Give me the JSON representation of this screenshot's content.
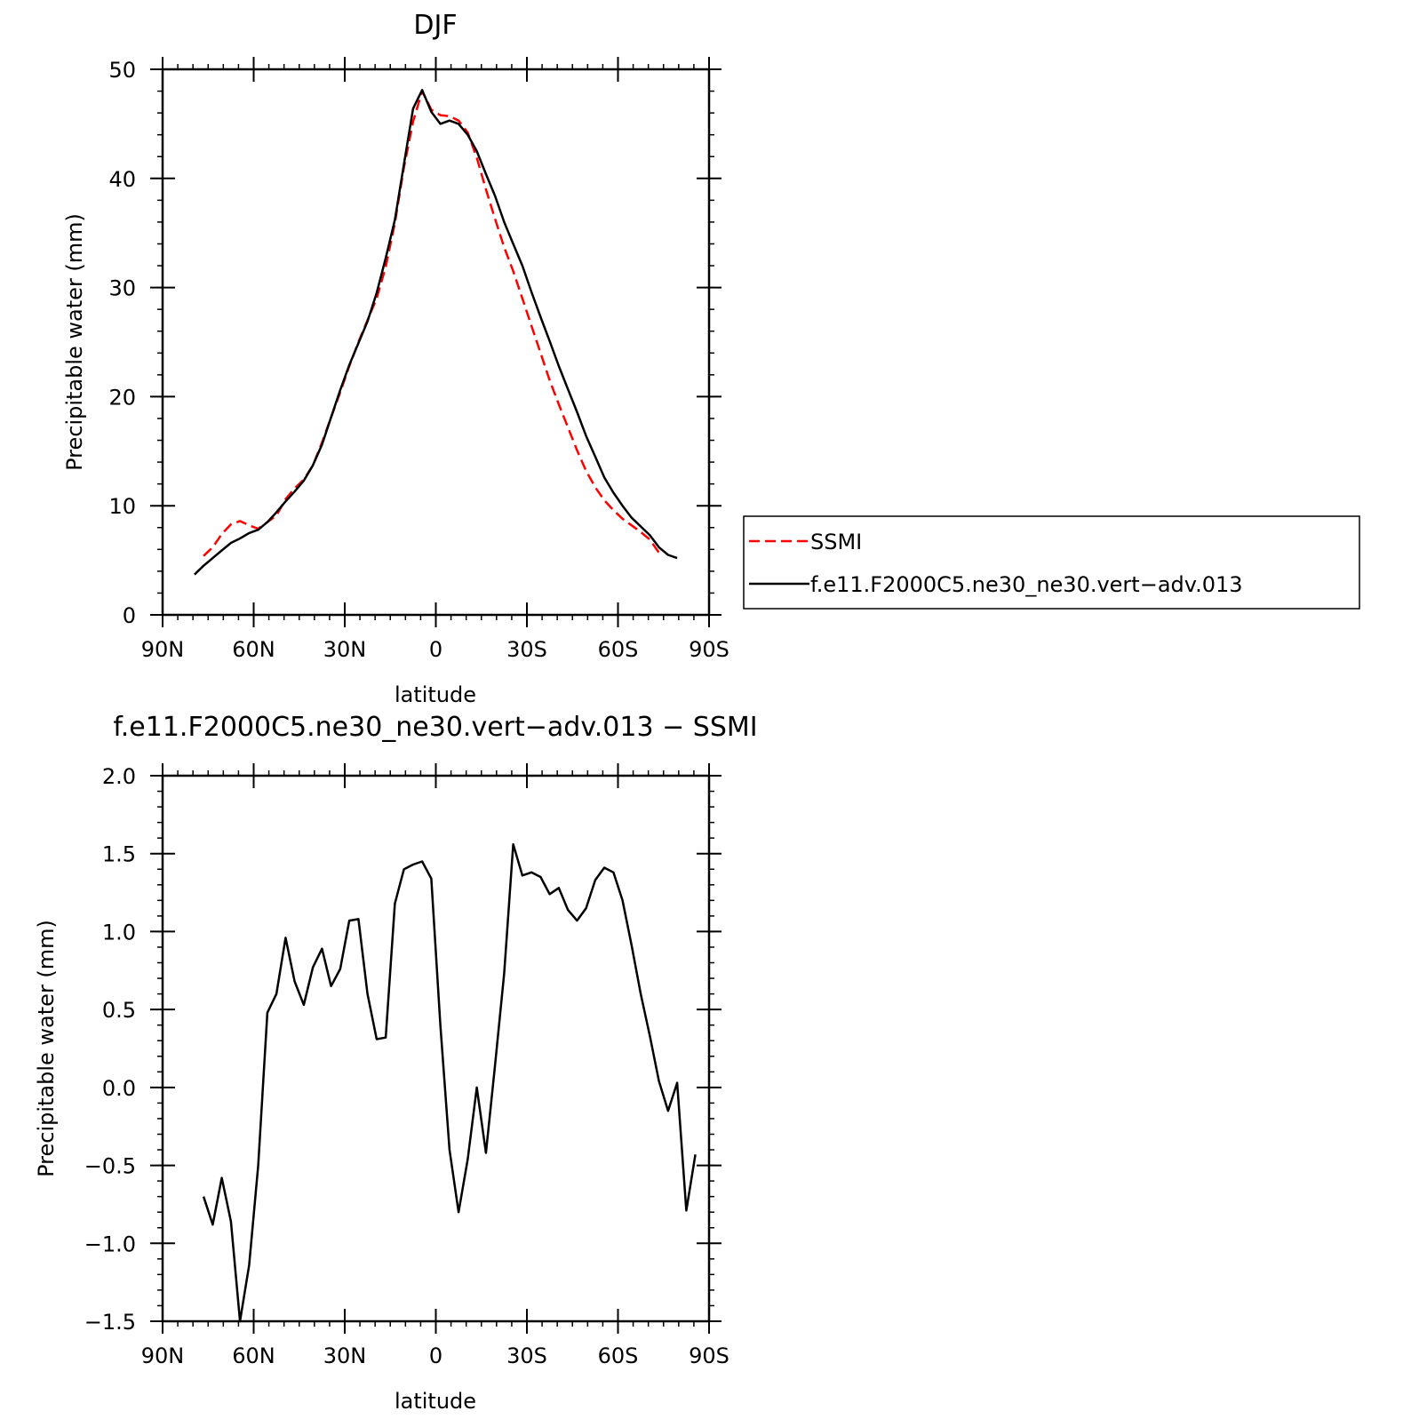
{
  "chart_data": [
    {
      "type": "line",
      "title": "DJF",
      "xlabel": "latitude",
      "ylabel": "Precipitable water (mm)",
      "xlim": [
        90,
        -90
      ],
      "ylim": [
        0,
        50
      ],
      "x_tick_values": [
        90,
        60,
        30,
        0,
        -30,
        -60,
        -90
      ],
      "x_tick_labels": [
        "90N",
        "60N",
        "30N",
        "0",
        "30S",
        "60S",
        "90S"
      ],
      "y_tick_values": [
        0,
        10,
        20,
        30,
        40,
        50
      ],
      "y_tick_labels": [
        "0",
        "10",
        "20",
        "30",
        "40",
        "50"
      ],
      "grid": false,
      "legend": {
        "placement": "right",
        "position": "outside-right"
      },
      "series": [
        {
          "name": "SSMI",
          "color": "#ff0000",
          "dash": "dashed",
          "points": [
            [
              76.5,
              5.4
            ],
            [
              73.5,
              6.2
            ],
            [
              70.5,
              7.4
            ],
            [
              67.5,
              8.3
            ],
            [
              64.5,
              8.6
            ],
            [
              61.5,
              8.2
            ],
            [
              58.5,
              7.9
            ],
            [
              55.5,
              8.5
            ],
            [
              52.5,
              9.1
            ],
            [
              49.5,
              10.6
            ],
            [
              46.5,
              11.6
            ],
            [
              43.5,
              12.4
            ],
            [
              40.5,
              13.7
            ],
            [
              37.5,
              15.8
            ],
            [
              34.5,
              18.1
            ],
            [
              31.5,
              20.4
            ],
            [
              28.5,
              22.8
            ],
            [
              25.5,
              25.0
            ],
            [
              22.5,
              27.0
            ],
            [
              19.5,
              29.0
            ],
            [
              16.5,
              31.9
            ],
            [
              13.5,
              35.9
            ],
            [
              10.5,
              41.0
            ],
            [
              7.5,
              45.2
            ],
            [
              4.5,
              48.0
            ],
            [
              1.5,
              46.3
            ],
            [
              -1.5,
              45.8
            ],
            [
              -4.5,
              45.7
            ],
            [
              -7.5,
              45.3
            ],
            [
              -10.5,
              44.2
            ],
            [
              -13.5,
              41.9
            ],
            [
              -16.5,
              39.0
            ],
            [
              -19.5,
              36.3
            ],
            [
              -22.5,
              33.7
            ],
            [
              -25.5,
              31.5
            ],
            [
              -28.5,
              29.0
            ],
            [
              -31.5,
              26.5
            ],
            [
              -34.5,
              24.0
            ],
            [
              -37.5,
              21.5
            ],
            [
              -40.5,
              19.3
            ],
            [
              -43.5,
              17.2
            ],
            [
              -46.5,
              15.1
            ],
            [
              -49.5,
              13.2
            ],
            [
              -52.5,
              11.7
            ],
            [
              -55.5,
              10.5
            ],
            [
              -58.5,
              9.6
            ],
            [
              -61.5,
              8.8
            ],
            [
              -64.5,
              8.2
            ],
            [
              -67.5,
              7.6
            ],
            [
              -70.5,
              6.9
            ],
            [
              -73.5,
              5.7
            ]
          ]
        },
        {
          "name": "f.e11.F2000C5.ne30_ne30.vert−adv.013",
          "color": "#000000",
          "dash": "solid",
          "points": [
            [
              79.5,
              3.7
            ],
            [
              76.5,
              4.5
            ],
            [
              73.5,
              5.2
            ],
            [
              70.5,
              5.9
            ],
            [
              67.5,
              6.6
            ],
            [
              64.5,
              7.0
            ],
            [
              61.5,
              7.5
            ],
            [
              58.5,
              7.8
            ],
            [
              55.5,
              8.5
            ],
            [
              52.5,
              9.4
            ],
            [
              49.5,
              10.4
            ],
            [
              46.5,
              11.3
            ],
            [
              43.5,
              12.3
            ],
            [
              40.5,
              13.7
            ],
            [
              37.5,
              15.6
            ],
            [
              34.5,
              18.1
            ],
            [
              31.5,
              20.6
            ],
            [
              28.5,
              22.9
            ],
            [
              25.5,
              24.9
            ],
            [
              22.5,
              26.9
            ],
            [
              19.5,
              29.5
            ],
            [
              16.5,
              32.7
            ],
            [
              13.5,
              36.2
            ],
            [
              10.5,
              41.3
            ],
            [
              7.5,
              46.4
            ],
            [
              4.5,
              48.1
            ],
            [
              1.5,
              46.1
            ],
            [
              -1.5,
              45.0
            ],
            [
              -4.5,
              45.3
            ],
            [
              -7.5,
              45.0
            ],
            [
              -10.5,
              44.0
            ],
            [
              -13.5,
              42.5
            ],
            [
              -16.5,
              40.4
            ],
            [
              -19.5,
              38.4
            ],
            [
              -22.5,
              36.0
            ],
            [
              -25.5,
              34.0
            ],
            [
              -28.5,
              32.0
            ],
            [
              -31.5,
              29.6
            ],
            [
              -34.5,
              27.3
            ],
            [
              -37.5,
              25.1
            ],
            [
              -40.5,
              22.8
            ],
            [
              -43.5,
              20.7
            ],
            [
              -46.5,
              18.6
            ],
            [
              -49.5,
              16.4
            ],
            [
              -52.5,
              14.5
            ],
            [
              -55.5,
              12.6
            ],
            [
              -58.5,
              11.2
            ],
            [
              -61.5,
              10.0
            ],
            [
              -64.5,
              8.9
            ],
            [
              -67.5,
              8.1
            ],
            [
              -70.5,
              7.3
            ],
            [
              -73.5,
              6.2
            ],
            [
              -76.5,
              5.5
            ],
            [
              -79.5,
              5.2
            ]
          ]
        }
      ]
    },
    {
      "type": "line",
      "title": "f.e11.F2000C5.ne30_ne30.vert−adv.013 − SSMI",
      "xlabel": "latitude",
      "ylabel": "Precipitable water (mm)",
      "xlim": [
        90,
        -90
      ],
      "ylim": [
        -1.5,
        2.0
      ],
      "x_tick_values": [
        90,
        60,
        30,
        0,
        -30,
        -60,
        -90
      ],
      "x_tick_labels": [
        "90N",
        "60N",
        "30N",
        "0",
        "30S",
        "60S",
        "90S"
      ],
      "y_tick_values": [
        -1.5,
        -1.0,
        -0.5,
        0.0,
        0.5,
        1.0,
        1.5,
        2.0
      ],
      "y_tick_labels": [
        "−1.5",
        "−1.0",
        "−0.5",
        "0.0",
        "0.5",
        "1.0",
        "1.5",
        "2.0"
      ],
      "grid": false,
      "series": [
        {
          "color": "#000000",
          "dash": "solid",
          "points": [
            [
              76.5,
              -0.7
            ],
            [
              73.5,
              -0.88
            ],
            [
              70.5,
              -0.58
            ],
            [
              67.5,
              -0.86
            ],
            [
              64.5,
              -1.5
            ],
            [
              61.5,
              -1.14
            ],
            [
              58.5,
              -0.5
            ],
            [
              55.5,
              0.48
            ],
            [
              52.5,
              0.6
            ],
            [
              49.5,
              0.96
            ],
            [
              46.5,
              0.68
            ],
            [
              43.5,
              0.53
            ],
            [
              40.5,
              0.77
            ],
            [
              37.5,
              0.89
            ],
            [
              34.5,
              0.65
            ],
            [
              31.5,
              0.76
            ],
            [
              28.5,
              1.07
            ],
            [
              25.5,
              1.08
            ],
            [
              22.5,
              0.6
            ],
            [
              19.5,
              0.31
            ],
            [
              16.5,
              0.32
            ],
            [
              13.5,
              1.18
            ],
            [
              10.5,
              1.4
            ],
            [
              7.5,
              1.43
            ],
            [
              4.5,
              1.45
            ],
            [
              1.5,
              1.34
            ],
            [
              -1.5,
              0.4
            ],
            [
              -4.5,
              -0.4
            ],
            [
              -7.5,
              -0.8
            ],
            [
              -10.5,
              -0.46
            ],
            [
              -13.5,
              0.0
            ],
            [
              -16.5,
              -0.42
            ],
            [
              -19.5,
              0.14
            ],
            [
              -22.5,
              0.73
            ],
            [
              -25.5,
              1.56
            ],
            [
              -28.5,
              1.36
            ],
            [
              -31.5,
              1.38
            ],
            [
              -34.5,
              1.35
            ],
            [
              -37.5,
              1.24
            ],
            [
              -40.5,
              1.28
            ],
            [
              -43.5,
              1.14
            ],
            [
              -46.5,
              1.07
            ],
            [
              -49.5,
              1.15
            ],
            [
              -52.5,
              1.33
            ],
            [
              -55.5,
              1.41
            ],
            [
              -58.5,
              1.38
            ],
            [
              -61.5,
              1.2
            ],
            [
              -64.5,
              0.91
            ],
            [
              -67.5,
              0.6
            ],
            [
              -70.5,
              0.33
            ],
            [
              -73.5,
              0.04
            ],
            [
              -76.5,
              -0.15
            ],
            [
              -79.5,
              0.03
            ],
            [
              -82.5,
              -0.79
            ],
            [
              -85.5,
              -0.43
            ]
          ]
        }
      ]
    }
  ]
}
